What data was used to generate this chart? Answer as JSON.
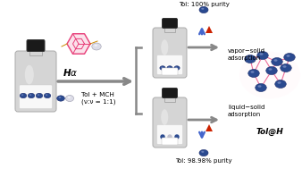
{
  "bg_color": "#ffffff",
  "bottle1_label": "Hα",
  "tol_mch_label": "Tol + MCH\n(ν:ν = 1:1)",
  "top_label1": "Tol: 100% purity",
  "top_label2": "vapor−solid\nadsorption",
  "bot_label1": "liquid−solid\nadsorption",
  "bot_label2": "Tol: 98.98% purity",
  "tol_h_label": "Tol@H",
  "arrow_color": "#888888",
  "pink_color": "#e8407a",
  "blue_color": "#2a4a90",
  "dark_blue": "#1a2a6a",
  "red_color": "#cc2200",
  "bottle_body_color": "#d5d5d5",
  "bottle_cap_color": "#1a1a1a"
}
